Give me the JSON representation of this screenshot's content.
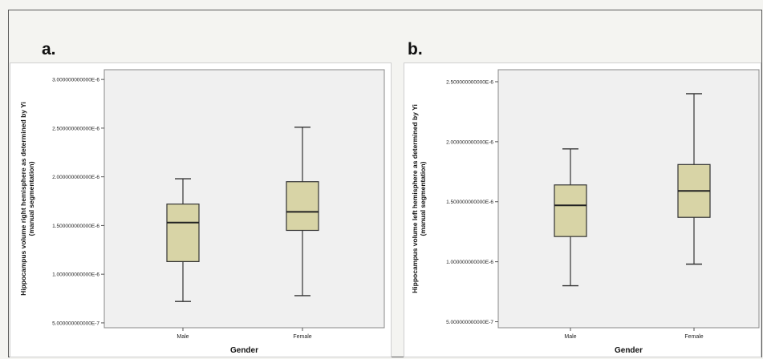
{
  "chart_data": [
    {
      "type": "box",
      "panel_label": "a.",
      "xlabel": "Gender",
      "ylabel_lines": [
        "Hippocampus volume right hemisphere as determined by Yi",
        "(manual segmentation)"
      ],
      "categories": [
        "Male",
        "Female"
      ],
      "ylim": [
        4.5e-07,
        3.1e-06
      ],
      "y_ticks": [
        {
          "value": 5e-07,
          "label": "5.000000000000E-7"
        },
        {
          "value": 1e-06,
          "label": "1.000000000000E-6"
        },
        {
          "value": 1.5e-06,
          "label": "1.500000000000E-6"
        },
        {
          "value": 2e-06,
          "label": "2.000000000000E-6"
        },
        {
          "value": 2.5e-06,
          "label": "2.500000000000E-6"
        },
        {
          "value": 3e-06,
          "label": "3.000000000000E-6"
        }
      ],
      "boxes": [
        {
          "category": "Male",
          "min": 7.2e-07,
          "q1": 1.13e-06,
          "median": 1.53e-06,
          "q3": 1.72e-06,
          "max": 1.98e-06
        },
        {
          "category": "Female",
          "min": 7.8e-07,
          "q1": 1.45e-06,
          "median": 1.64e-06,
          "q3": 1.95e-06,
          "max": 2.51e-06
        }
      ],
      "grid": false,
      "colors": {
        "box_fill": "#d8d4a6",
        "stroke": "#333333",
        "plot_bg": "#f0f0f0"
      }
    },
    {
      "type": "box",
      "panel_label": "b.",
      "xlabel": "Gender",
      "ylabel_lines": [
        "Hippocampus volume left hemisphere as determined by Yi",
        "(manual segmentation)"
      ],
      "categories": [
        "Male",
        "Female"
      ],
      "ylim": [
        4.5e-07,
        2.6e-06
      ],
      "y_ticks": [
        {
          "value": 5e-07,
          "label": "5.000000000000E-7"
        },
        {
          "value": 1e-06,
          "label": "1.000000000000E-6"
        },
        {
          "value": 1.5e-06,
          "label": "1.500000000000E-6"
        },
        {
          "value": 2e-06,
          "label": "2.000000000000E-6"
        },
        {
          "value": 2.5e-06,
          "label": "2.500000000000E-6"
        }
      ],
      "boxes": [
        {
          "category": "Male",
          "min": 8e-07,
          "q1": 1.21e-06,
          "median": 1.47e-06,
          "q3": 1.64e-06,
          "max": 1.94e-06
        },
        {
          "category": "Female",
          "min": 9.8e-07,
          "q1": 1.37e-06,
          "median": 1.59e-06,
          "q3": 1.81e-06,
          "max": 2.4e-06
        }
      ],
      "grid": false,
      "colors": {
        "box_fill": "#d8d4a6",
        "stroke": "#333333",
        "plot_bg": "#f0f0f0"
      }
    }
  ]
}
